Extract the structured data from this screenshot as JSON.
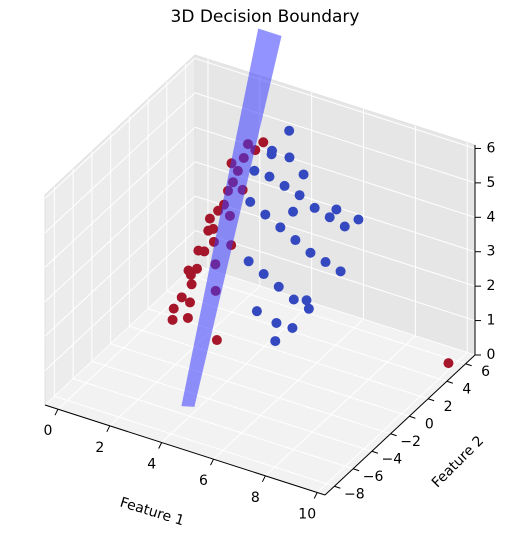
{
  "chart_data": {
    "type": "scatter3d",
    "title": "3D Decision Boundary",
    "xlabel": "Feature 1",
    "ylabel": "Feature 2",
    "xlim": [
      -0.5,
      10.3
    ],
    "ylim": [
      -9,
      7
    ],
    "zlim": [
      0,
      6.1
    ],
    "xticks": [
      0,
      2,
      4,
      6,
      8,
      10
    ],
    "yticks": [
      {
        "value": -8,
        "label": "−8"
      },
      {
        "value": -6,
        "label": "−6"
      },
      {
        "value": -4,
        "label": "−4"
      },
      {
        "value": -2,
        "label": "−2"
      },
      0,
      2,
      4,
      6
    ],
    "zticks": [
      0,
      1,
      2,
      3,
      4,
      5,
      6
    ],
    "grid": true,
    "series": [
      {
        "color": "#a5162a",
        "x": [
          1.6,
          1.8,
          2.0,
          2.2,
          2.4,
          2.6,
          1.9,
          2.1,
          2.3,
          2.5,
          2.7,
          2.9,
          1.7,
          2.0,
          2.4,
          2.8,
          3.0,
          3.2,
          2.2,
          2.6,
          1.5,
          1.8,
          2.1,
          2.5,
          3.4,
          2.9,
          2.3,
          1.6,
          3.1,
          2.7,
          10.0,
          3.6
        ],
        "y": [
          0.5,
          1,
          1.5,
          2,
          2.5,
          3,
          0,
          0.8,
          1.2,
          1.8,
          2.2,
          2.8,
          -0.5,
          0.3,
          1,
          1.6,
          2.4,
          3.2,
          -1,
          0.6,
          -0.8,
          0.2,
          1.4,
          2.6,
          3.5,
          -0.2,
          -1.5,
          -1.2,
          0.9,
          3.8,
          5,
          -2
        ],
        "z": [
          2,
          2.5,
          3,
          3.5,
          4,
          4.5,
          1.8,
          2.6,
          3.2,
          3.8,
          4.4,
          5,
          1.5,
          2.2,
          2.9,
          3.6,
          4.2,
          5.2,
          1.6,
          2.4,
          1.2,
          2,
          3.4,
          4.8,
          5.4,
          1.9,
          1.3,
          1,
          3,
          5.1,
          0.2,
          1.1
        ]
      },
      {
        "color": "#3448c0",
        "x": [
          3.6,
          4,
          4.4,
          4.8,
          5.2,
          5.6,
          6,
          3.8,
          4.2,
          4.6,
          5,
          5.4,
          5.8,
          6.2,
          4.1,
          4.5,
          4.9,
          5.3,
          5.7,
          3.9,
          4.3,
          4.7,
          5.1,
          5.5,
          6.4,
          4,
          4.6,
          5.2,
          3.7,
          4.8,
          5.9,
          6.6
        ],
        "y": [
          2,
          2.5,
          3,
          3.5,
          4,
          4.5,
          5,
          1,
          1.5,
          2,
          2.5,
          3,
          3.5,
          4,
          0,
          0.5,
          1,
          1.5,
          2,
          3,
          3.8,
          4.2,
          0.2,
          0.8,
          3,
          4.6,
          -0.5,
          -0.2,
          3.6,
          2.8,
          1.2,
          4.8
        ],
        "z": [
          5,
          4.8,
          4.5,
          4.2,
          3.8,
          3.5,
          3.2,
          4.4,
          4,
          3.6,
          3.2,
          2.8,
          2.5,
          2.2,
          3,
          2.6,
          2.2,
          1.8,
          1.5,
          5.3,
          5.1,
          4.6,
          1.4,
          1.2,
          4.3,
          5.6,
          1.8,
          1,
          5.2,
          3.9,
          2,
          3.6
        ]
      }
    ],
    "surface": {
      "color": "#3a3aff",
      "x": [
        4.4,
        4.9,
        3.2,
        2.3
      ],
      "y": [
        -8,
        -8,
        6,
        6
      ],
      "z": [
        0.9,
        1.0,
        7.8,
        7.8
      ]
    }
  }
}
